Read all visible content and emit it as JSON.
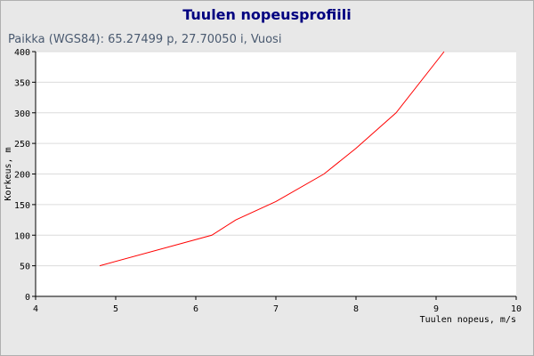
{
  "chart_data": {
    "type": "line",
    "title": "Tuulen nopeusprofiili",
    "subtitle": "Paikka (WGS84): 65.27499 p, 27.70050 i, Vuosi",
    "xlabel": "Tuulen nopeus, m/s",
    "ylabel": "Korkeus, m",
    "xlim": [
      4,
      10
    ],
    "ylim": [
      0,
      400
    ],
    "xticks": [
      4,
      5,
      6,
      7,
      8,
      9,
      10
    ],
    "yticks": [
      0,
      50,
      100,
      150,
      200,
      250,
      300,
      350,
      400
    ],
    "grid": true,
    "series": [
      {
        "color": "#ff0000",
        "points": [
          {
            "x": 4.8,
            "y": 50
          },
          {
            "x": 6.2,
            "y": 100
          },
          {
            "x": 6.5,
            "y": 125
          },
          {
            "x": 7.0,
            "y": 155
          },
          {
            "x": 7.6,
            "y": 200
          },
          {
            "x": 8.0,
            "y": 242
          },
          {
            "x": 8.5,
            "y": 300
          },
          {
            "x": 9.1,
            "y": 400
          }
        ]
      }
    ]
  }
}
